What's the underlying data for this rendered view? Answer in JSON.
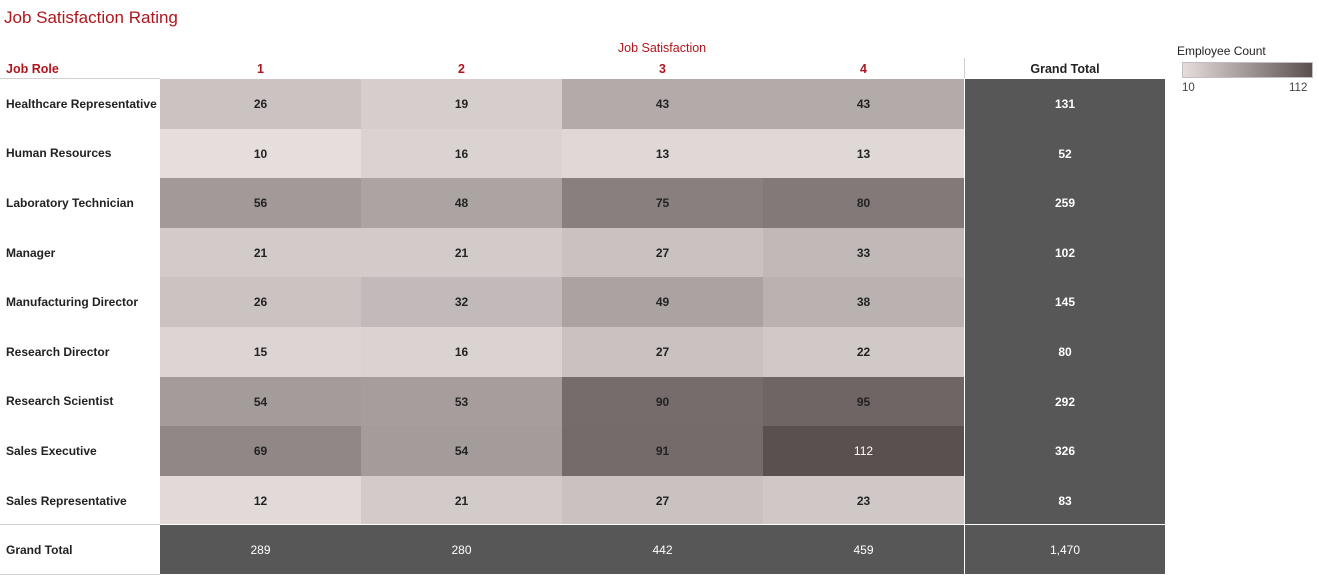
{
  "title": "Job Satisfaction Rating",
  "chart_data": {
    "type": "heatmap",
    "title": "Job Satisfaction Rating",
    "column_group_label": "Job Satisfaction",
    "row_header": "Job Role",
    "columns": [
      "1",
      "2",
      "3",
      "4"
    ],
    "rows": [
      "Healthcare Representative",
      "Human Resources",
      "Laboratory Technician",
      "Manager",
      "Manufacturing Director",
      "Research Director",
      "Research Scientist",
      "Sales Executive",
      "Sales Representative"
    ],
    "values": [
      [
        26,
        19,
        43,
        43
      ],
      [
        10,
        16,
        13,
        13
      ],
      [
        56,
        48,
        75,
        80
      ],
      [
        21,
        21,
        27,
        33
      ],
      [
        26,
        32,
        49,
        38
      ],
      [
        15,
        16,
        27,
        22
      ],
      [
        54,
        53,
        90,
        95
      ],
      [
        69,
        54,
        91,
        112
      ],
      [
        12,
        21,
        27,
        23
      ]
    ],
    "row_totals": [
      "131",
      "52",
      "259",
      "102",
      "145",
      "80",
      "292",
      "326",
      "83"
    ],
    "column_totals": [
      "289",
      "280",
      "442",
      "459"
    ],
    "grand_total": "1,470",
    "grand_total_label": "Grand Total",
    "legend": {
      "title": "Employee Count",
      "min": 10,
      "max": 112,
      "min_label": "10",
      "max_label": "112",
      "color_min": "#e5dedd",
      "color_max": "#5b5050",
      "placement": "top-right"
    },
    "total_color": "#575757",
    "accent_color": "#b0161e"
  }
}
